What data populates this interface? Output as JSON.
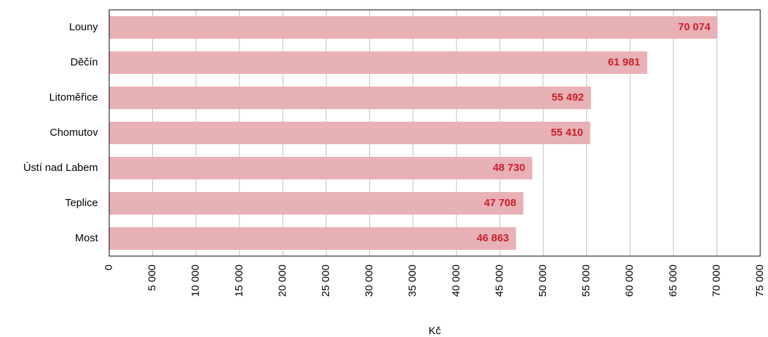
{
  "chart_data": {
    "type": "barh",
    "categories": [
      "Louny",
      "Děčín",
      "Litoměřice",
      "Chomutov",
      "Ústí nad Labem",
      "Teplice",
      "Most"
    ],
    "values": [
      70074,
      61981,
      55492,
      55410,
      48730,
      47708,
      46863
    ],
    "value_labels": [
      "70 074",
      "61 981",
      "55 492",
      "55 410",
      "48 730",
      "47 708",
      "46 863"
    ],
    "color": "#e8b1b5",
    "label_color": "#c8202c",
    "xlabel": "Kč",
    "xlim": [
      0,
      75000
    ],
    "xticks": [
      0,
      {
        "value": 5000,
        "label": "5 000"
      },
      {
        "value": 10000,
        "label": "10 000"
      },
      {
        "value": 15000,
        "label": "15 000"
      },
      {
        "value": 20000,
        "label": "20 000"
      },
      {
        "value": 25000,
        "label": "25 000"
      },
      {
        "value": 30000,
        "label": "30 000"
      },
      {
        "value": 35000,
        "label": "35 000"
      },
      {
        "value": 40000,
        "label": "40 000"
      },
      {
        "value": 45000,
        "label": "45 000"
      },
      {
        "value": 50000,
        "label": "50 000"
      },
      {
        "value": 55000,
        "label": "55 000"
      },
      {
        "value": 60000,
        "label": "60 000"
      },
      {
        "value": 65000,
        "label": "65 000"
      },
      {
        "value": 70000,
        "label": "70 000"
      },
      {
        "value": 75000,
        "label": "75 000"
      }
    ],
    "grid": true
  }
}
